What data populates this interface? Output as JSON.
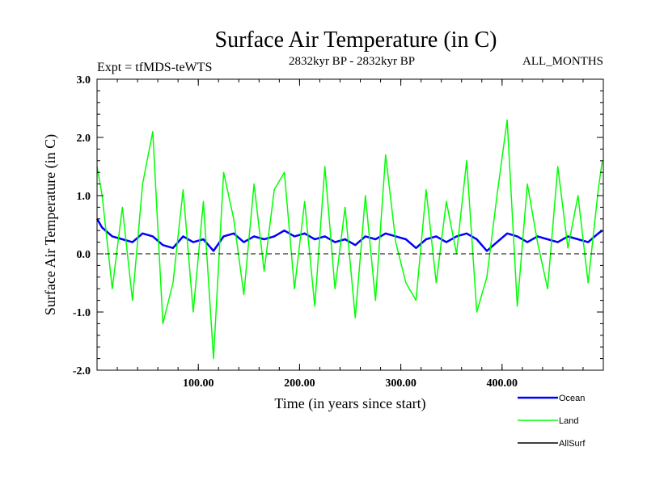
{
  "chart_data": {
    "type": "line",
    "title": "Surface Air Temperature (in C)",
    "subtitle_left": "Expt = tfMDS-teWTS",
    "subtitle_center": "2832kyr BP - 2832kyr BP",
    "subtitle_right": "ALL_MONTHS",
    "xlabel": "Time (in years since start)",
    "ylabel": "Surface Air Temperature (in C)",
    "xlim": [
      0,
      500
    ],
    "ylim": [
      -2.0,
      3.0
    ],
    "x_ticks": [
      100,
      200,
      300,
      400
    ],
    "x_tick_labels": [
      "100.00",
      "200.00",
      "300.00",
      "400.00"
    ],
    "y_ticks": [
      -2.0,
      -1.0,
      0.0,
      1.0,
      2.0,
      3.0
    ],
    "y_tick_labels": [
      "-2.0",
      "-1.0",
      "0.0",
      "1.0",
      "2.0",
      "3.0"
    ],
    "zero_reference_line": 0.0,
    "series": [
      {
        "name": "Ocean",
        "color": "#0000ff",
        "x": [
          0,
          5,
          15,
          25,
          35,
          45,
          55,
          65,
          75,
          85,
          95,
          105,
          115,
          125,
          135,
          145,
          155,
          165,
          175,
          185,
          195,
          205,
          215,
          225,
          235,
          245,
          255,
          265,
          275,
          285,
          295,
          305,
          315,
          325,
          335,
          345,
          355,
          365,
          375,
          385,
          395,
          405,
          415,
          425,
          435,
          445,
          455,
          465,
          475,
          485,
          495,
          499
        ],
        "values": [
          0.6,
          0.45,
          0.3,
          0.25,
          0.2,
          0.35,
          0.3,
          0.15,
          0.1,
          0.3,
          0.2,
          0.25,
          0.05,
          0.3,
          0.35,
          0.2,
          0.3,
          0.25,
          0.3,
          0.4,
          0.3,
          0.35,
          0.25,
          0.3,
          0.2,
          0.25,
          0.15,
          0.3,
          0.25,
          0.35,
          0.3,
          0.25,
          0.1,
          0.25,
          0.3,
          0.2,
          0.3,
          0.35,
          0.25,
          0.05,
          0.2,
          0.35,
          0.3,
          0.2,
          0.3,
          0.25,
          0.2,
          0.3,
          0.25,
          0.2,
          0.35,
          0.4
        ]
      },
      {
        "name": "Land",
        "color": "#00ff00",
        "x": [
          0,
          5,
          15,
          25,
          35,
          45,
          55,
          65,
          75,
          85,
          95,
          105,
          115,
          125,
          135,
          145,
          155,
          165,
          175,
          185,
          195,
          205,
          215,
          225,
          235,
          245,
          255,
          265,
          275,
          285,
          295,
          305,
          315,
          325,
          335,
          345,
          355,
          365,
          375,
          385,
          395,
          405,
          415,
          425,
          435,
          445,
          455,
          465,
          475,
          485,
          495,
          499
        ],
        "values": [
          1.5,
          1.0,
          -0.6,
          0.8,
          -0.8,
          1.2,
          2.1,
          -1.2,
          -0.5,
          1.1,
          -1.0,
          0.9,
          -1.8,
          1.4,
          0.6,
          -0.7,
          1.2,
          -0.3,
          1.1,
          1.4,
          -0.6,
          0.9,
          -0.9,
          1.5,
          -0.6,
          0.8,
          -1.1,
          1.0,
          -0.8,
          1.7,
          0.2,
          -0.5,
          -0.8,
          1.1,
          -0.5,
          0.9,
          0.0,
          1.6,
          -1.0,
          -0.4,
          1.0,
          2.3,
          -0.9,
          1.2,
          0.2,
          -0.6,
          1.5,
          0.1,
          1.0,
          -0.5,
          1.1,
          1.6
        ]
      },
      {
        "name": "AllSurf",
        "color": "#000000",
        "x": [],
        "values": []
      }
    ]
  }
}
